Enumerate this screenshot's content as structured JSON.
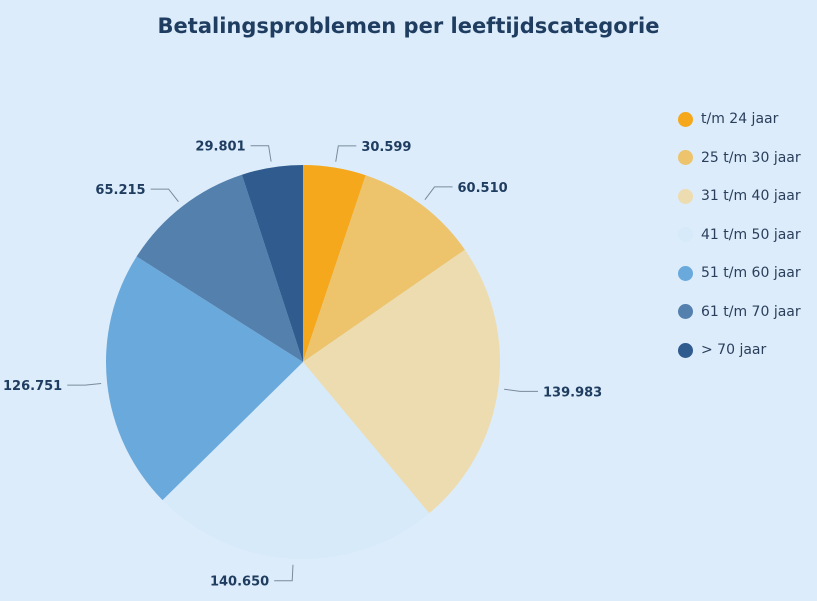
{
  "chart_data": {
    "type": "pie",
    "title": "Betalingsproblemen per leeftijdscategorie",
    "categories": [
      "t/m 24 jaar",
      "25 t/m 30 jaar",
      "31 t/m 40 jaar",
      "41 t/m 50 jaar",
      "51 t/m 60 jaar",
      "61 t/m 70 jaar",
      "> 70 jaar"
    ],
    "values": [
      30599,
      60510,
      139983,
      140650,
      126751,
      65215,
      29801
    ],
    "data_labels": [
      "30.599",
      "60.510",
      "139.983",
      "140.650",
      "126.751",
      "65.215",
      "29.801"
    ],
    "colors": [
      "#f5a81c",
      "#edc36c",
      "#eddcb0",
      "#d6eaf9",
      "#6aa9dc",
      "#5480ad",
      "#2f5b8e"
    ],
    "start_angle": "top, clockwise",
    "legend": "right"
  }
}
